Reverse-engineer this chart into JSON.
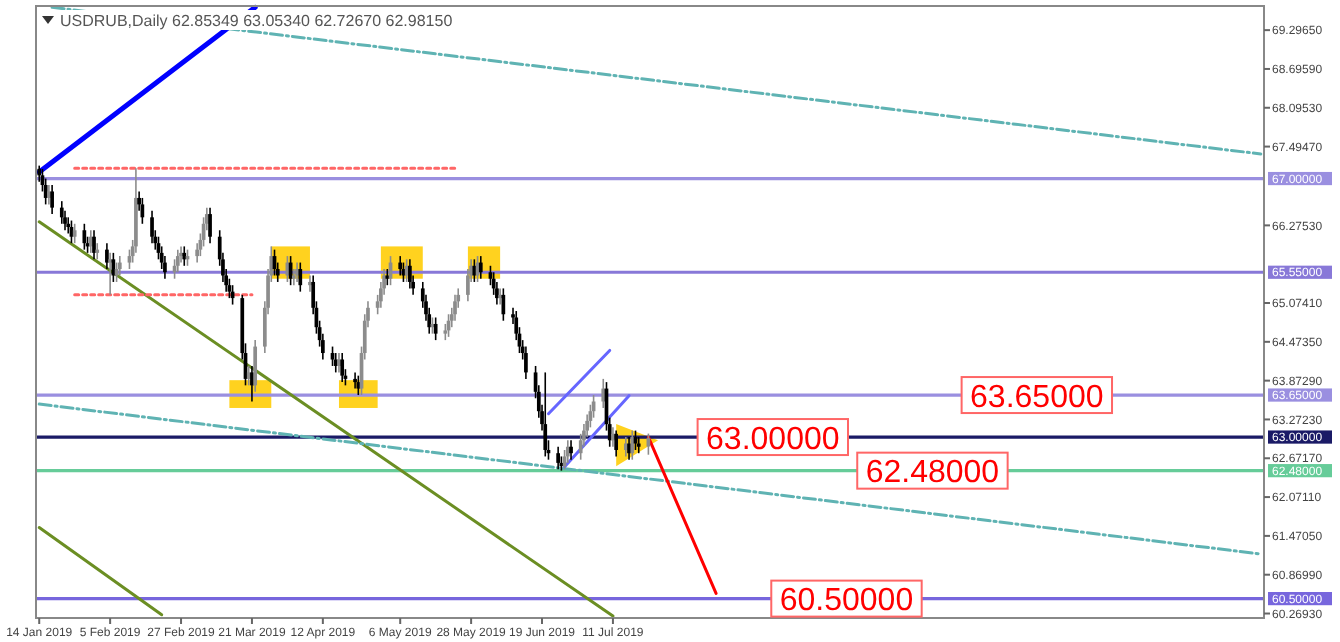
{
  "chart_data": {
    "type": "candlestick",
    "title": "USDRUB,Daily 62.85349 63.05340 62.72670 62.98150",
    "x": [
      "2019-01-14",
      "2019-01-15",
      "2019-01-16",
      "2019-01-17",
      "2019-01-18",
      "2019-01-21",
      "2019-01-22",
      "2019-01-23",
      "2019-01-24",
      "2019-01-25",
      "2019-01-28",
      "2019-01-29",
      "2019-01-30",
      "2019-01-31",
      "2019-02-01",
      "2019-02-04",
      "2019-02-05",
      "2019-02-06",
      "2019-02-07",
      "2019-02-08",
      "2019-02-11",
      "2019-02-12",
      "2019-02-13",
      "2019-02-14",
      "2019-02-15",
      "2019-02-18",
      "2019-02-19",
      "2019-02-20",
      "2019-02-21",
      "2019-02-22",
      "2019-02-25",
      "2019-02-26",
      "2019-02-27",
      "2019-02-28",
      "2019-03-01",
      "2019-03-04",
      "2019-03-05",
      "2019-03-06",
      "2019-03-07",
      "2019-03-08",
      "2019-03-11",
      "2019-03-12",
      "2019-03-13",
      "2019-03-14",
      "2019-03-15",
      "2019-03-18",
      "2019-03-19",
      "2019-03-20",
      "2019-03-21",
      "2019-03-22",
      "2019-03-25",
      "2019-03-26",
      "2019-03-27",
      "2019-03-28",
      "2019-03-29",
      "2019-04-01",
      "2019-04-02",
      "2019-04-03",
      "2019-04-04",
      "2019-04-05",
      "2019-04-08",
      "2019-04-09",
      "2019-04-10",
      "2019-04-11",
      "2019-04-12",
      "2019-04-15",
      "2019-04-16",
      "2019-04-17",
      "2019-04-18",
      "2019-04-19",
      "2019-04-22",
      "2019-04-23",
      "2019-04-24",
      "2019-04-25",
      "2019-04-26",
      "2019-04-29",
      "2019-04-30",
      "2019-05-01",
      "2019-05-02",
      "2019-05-03",
      "2019-05-06",
      "2019-05-07",
      "2019-05-08",
      "2019-05-09",
      "2019-05-10",
      "2019-05-13",
      "2019-05-14",
      "2019-05-15",
      "2019-05-16",
      "2019-05-17",
      "2019-05-20",
      "2019-05-21",
      "2019-05-22",
      "2019-05-23",
      "2019-05-24",
      "2019-05-27",
      "2019-05-28",
      "2019-05-29",
      "2019-05-30",
      "2019-05-31",
      "2019-06-03",
      "2019-06-04",
      "2019-06-05",
      "2019-06-06",
      "2019-06-07",
      "2019-06-10",
      "2019-06-11",
      "2019-06-12",
      "2019-06-13",
      "2019-06-14",
      "2019-06-17",
      "2019-06-18",
      "2019-06-19",
      "2019-06-20",
      "2019-06-21",
      "2019-06-24",
      "2019-06-25",
      "2019-06-26",
      "2019-06-27",
      "2019-06-28",
      "2019-07-01",
      "2019-07-02",
      "2019-07-03",
      "2019-07-04",
      "2019-07-05",
      "2019-07-08",
      "2019-07-09",
      "2019-07-10",
      "2019-07-11",
      "2019-07-12",
      "2019-07-15",
      "2019-07-16",
      "2019-07-17",
      "2019-07-18",
      "2019-07-19",
      "2019-07-22"
    ],
    "ohlc": [
      [
        67.15,
        67.2,
        66.95,
        67.05
      ],
      [
        67.05,
        67.15,
        66.8,
        66.9
      ],
      [
        66.9,
        67.0,
        66.6,
        66.7
      ],
      [
        66.7,
        66.9,
        66.6,
        66.8
      ],
      [
        66.8,
        66.9,
        66.45,
        66.55
      ],
      [
        66.55,
        66.65,
        66.3,
        66.4
      ],
      [
        66.4,
        66.5,
        66.2,
        66.3
      ],
      [
        66.3,
        66.4,
        66.15,
        66.25
      ],
      [
        66.25,
        66.35,
        66.0,
        66.1
      ],
      [
        66.1,
        66.3,
        66.0,
        66.2
      ],
      [
        66.2,
        66.3,
        65.9,
        66.0
      ],
      [
        66.0,
        66.1,
        65.85,
        65.95
      ],
      [
        65.95,
        66.2,
        65.85,
        66.1
      ],
      [
        66.1,
        66.2,
        65.75,
        65.85
      ],
      [
        65.85,
        66.0,
        65.75,
        65.9
      ],
      [
        65.9,
        66.0,
        65.6,
        65.7
      ],
      [
        65.7,
        65.85,
        65.2,
        65.75
      ],
      [
        65.75,
        65.85,
        65.4,
        65.5
      ],
      [
        65.5,
        65.7,
        65.4,
        65.6
      ],
      [
        65.6,
        65.8,
        65.5,
        65.7
      ],
      [
        65.7,
        65.9,
        65.6,
        65.8
      ],
      [
        65.8,
        66.05,
        65.7,
        65.95
      ],
      [
        65.95,
        67.16,
        65.85,
        66.7
      ],
      [
        66.7,
        66.8,
        66.5,
        66.6
      ],
      [
        66.6,
        66.7,
        66.3,
        66.4
      ],
      [
        66.4,
        66.5,
        66.0,
        66.1
      ],
      [
        66.1,
        66.2,
        65.9,
        66.0
      ],
      [
        66.0,
        66.1,
        65.75,
        65.85
      ],
      [
        65.85,
        65.95,
        65.6,
        65.7
      ],
      [
        65.7,
        65.8,
        65.45,
        65.55
      ],
      [
        65.55,
        65.75,
        65.45,
        65.65
      ],
      [
        65.65,
        65.9,
        65.55,
        65.8
      ],
      [
        65.8,
        65.95,
        65.7,
        65.85
      ],
      [
        65.85,
        65.95,
        65.65,
        65.75
      ],
      [
        65.75,
        65.9,
        65.65,
        65.8
      ],
      [
        65.8,
        66.0,
        65.7,
        65.9
      ],
      [
        65.9,
        66.15,
        65.8,
        66.05
      ],
      [
        66.05,
        66.4,
        65.95,
        66.3
      ],
      [
        66.3,
        66.55,
        66.2,
        66.45
      ],
      [
        66.45,
        66.55,
        66.0,
        66.1
      ],
      [
        66.1,
        66.2,
        65.65,
        65.75
      ],
      [
        65.75,
        65.85,
        65.4,
        65.5
      ],
      [
        65.5,
        65.6,
        65.25,
        65.35
      ],
      [
        65.35,
        65.45,
        65.15,
        65.25
      ],
      [
        65.25,
        65.35,
        65.05,
        65.15
      ],
      [
        65.15,
        65.2,
        64.2,
        64.3
      ],
      [
        64.3,
        64.45,
        63.8,
        63.9
      ],
      [
        63.9,
        64.1,
        63.8,
        64.0
      ],
      [
        64.0,
        64.1,
        63.55,
        63.8
      ],
      [
        63.8,
        64.5,
        63.7,
        64.4
      ],
      [
        64.4,
        65.1,
        64.3,
        65.0
      ],
      [
        65.0,
        65.6,
        64.9,
        65.5
      ],
      [
        65.5,
        65.95,
        65.4,
        65.8
      ],
      [
        65.8,
        65.9,
        65.5,
        65.6
      ],
      [
        65.6,
        65.7,
        65.4,
        65.5
      ],
      [
        65.5,
        65.8,
        65.4,
        65.7
      ],
      [
        65.7,
        65.8,
        65.35,
        65.45
      ],
      [
        65.45,
        65.6,
        65.35,
        65.5
      ],
      [
        65.5,
        65.7,
        65.4,
        65.6
      ],
      [
        65.6,
        65.7,
        65.25,
        65.35
      ],
      [
        65.35,
        65.5,
        65.25,
        65.4
      ],
      [
        65.4,
        65.5,
        64.9,
        65.0
      ],
      [
        65.0,
        65.1,
        64.6,
        64.7
      ],
      [
        64.7,
        64.8,
        64.4,
        64.5
      ],
      [
        64.5,
        64.6,
        64.2,
        64.3
      ],
      [
        64.3,
        64.4,
        64.1,
        64.2
      ],
      [
        64.2,
        64.3,
        64.0,
        64.1
      ],
      [
        64.1,
        64.3,
        64.0,
        64.2
      ],
      [
        64.2,
        64.3,
        63.85,
        63.95
      ],
      [
        63.95,
        64.05,
        63.8,
        63.9
      ],
      [
        63.9,
        64.0,
        63.75,
        63.85
      ],
      [
        63.85,
        63.95,
        63.65,
        63.75
      ],
      [
        63.75,
        64.4,
        63.65,
        64.3
      ],
      [
        64.3,
        64.9,
        64.2,
        64.8
      ],
      [
        64.8,
        65.1,
        64.7,
        65.0
      ],
      [
        65.0,
        65.2,
        64.9,
        65.1
      ],
      [
        65.1,
        65.4,
        65.0,
        65.3
      ],
      [
        65.3,
        65.6,
        65.2,
        65.5
      ],
      [
        65.5,
        65.6,
        65.35,
        65.45
      ],
      [
        65.45,
        65.8,
        65.35,
        65.7
      ],
      [
        65.7,
        65.8,
        65.5,
        65.6
      ],
      [
        65.6,
        65.7,
        65.4,
        65.5
      ],
      [
        65.5,
        65.75,
        65.4,
        65.65
      ],
      [
        65.65,
        65.75,
        65.3,
        65.4
      ],
      [
        65.4,
        65.5,
        65.2,
        65.3
      ],
      [
        65.3,
        65.4,
        65.0,
        65.1
      ],
      [
        65.1,
        65.2,
        64.8,
        64.9
      ],
      [
        64.9,
        65.0,
        64.6,
        64.7
      ],
      [
        64.7,
        64.85,
        64.6,
        64.75
      ],
      [
        64.75,
        64.85,
        64.5,
        64.6
      ],
      [
        64.6,
        64.75,
        64.5,
        64.65
      ],
      [
        64.65,
        64.9,
        64.55,
        64.8
      ],
      [
        64.8,
        65.0,
        64.7,
        64.9
      ],
      [
        64.9,
        65.2,
        64.8,
        65.1
      ],
      [
        65.1,
        65.3,
        65.0,
        65.2
      ],
      [
        65.2,
        65.6,
        65.1,
        65.5
      ],
      [
        65.5,
        65.75,
        65.4,
        65.65
      ],
      [
        65.65,
        65.75,
        65.4,
        65.5
      ],
      [
        65.5,
        65.8,
        65.4,
        65.7
      ],
      [
        65.7,
        65.8,
        65.45,
        65.55
      ],
      [
        65.55,
        65.65,
        65.35,
        65.45
      ],
      [
        65.45,
        65.55,
        65.2,
        65.3
      ],
      [
        65.3,
        65.4,
        65.05,
        65.15
      ],
      [
        65.15,
        65.3,
        65.05,
        65.2
      ],
      [
        65.2,
        65.3,
        64.8,
        64.9
      ],
      [
        64.9,
        65.0,
        64.75,
        64.85
      ],
      [
        64.85,
        64.95,
        64.5,
        64.6
      ],
      [
        64.6,
        64.7,
        64.3,
        64.4
      ],
      [
        64.4,
        64.5,
        64.2,
        64.3
      ],
      [
        64.3,
        64.4,
        63.9,
        64.0
      ],
      [
        64.0,
        64.1,
        63.6,
        63.7
      ],
      [
        63.7,
        63.8,
        63.3,
        63.4
      ],
      [
        63.4,
        63.5,
        63.1,
        63.2
      ],
      [
        63.2,
        64.0,
        62.7,
        62.8
      ],
      [
        62.8,
        62.95,
        62.65,
        62.75
      ],
      [
        62.75,
        62.85,
        62.5,
        62.6
      ],
      [
        62.6,
        62.7,
        62.48,
        62.55
      ],
      [
        62.55,
        62.8,
        62.5,
        62.7
      ],
      [
        62.7,
        62.95,
        62.6,
        62.85
      ],
      [
        62.85,
        62.95,
        62.65,
        62.75
      ],
      [
        62.75,
        63.05,
        62.65,
        62.95
      ],
      [
        62.95,
        63.2,
        62.85,
        63.1
      ],
      [
        63.1,
        63.35,
        63.0,
        63.25
      ],
      [
        63.25,
        63.5,
        63.15,
        63.4
      ],
      [
        63.4,
        63.65,
        63.3,
        63.55
      ],
      [
        63.55,
        63.9,
        63.45,
        63.75
      ],
      [
        63.75,
        63.85,
        63.1,
        63.2
      ],
      [
        63.2,
        63.3,
        62.85,
        62.95
      ],
      [
        62.95,
        63.15,
        62.85,
        63.05
      ],
      [
        63.05,
        63.1,
        62.7,
        62.8
      ],
      [
        62.8,
        63.0,
        62.7,
        62.9
      ],
      [
        62.9,
        63.0,
        62.65,
        62.75
      ],
      [
        62.75,
        63.1,
        62.65,
        63.0
      ],
      [
        63.0,
        63.1,
        62.8,
        62.9
      ],
      [
        62.9,
        63.0,
        62.75,
        62.85
      ],
      [
        62.85349,
        63.0534,
        62.7267,
        62.9815
      ]
    ],
    "series": [
      {
        "type": "line",
        "color": "#0000ff",
        "x": [
          "2019-01-14",
          "2019-03-22"
        ],
        "values": [
          67.1,
          69.65
        ],
        "line_style": "solid"
      },
      {
        "type": "line",
        "color": "#6b8e23",
        "x": [
          "2019-01-14",
          "2019-07-11"
        ],
        "values": [
          66.33,
          60.23
        ],
        "line_style": "solid"
      },
      {
        "type": "line",
        "color": "#6b8e23",
        "x": [
          "2019-01-14",
          "2019-02-21"
        ],
        "values": [
          61.6,
          60.25
        ],
        "line_style": "solid"
      },
      {
        "type": "line",
        "color": "#5fb3b3",
        "x": [
          "2019-01-18",
          "2020-01-28"
        ],
        "values": [
          69.65,
          67.38
        ],
        "line_style": "dashed"
      },
      {
        "type": "line",
        "color": "#5fb3b3",
        "x": [
          "2019-01-14",
          "2020-01-28"
        ],
        "values": [
          63.51,
          61.19
        ],
        "line_style": "dashed"
      },
      {
        "type": "line",
        "color": "#6666ff",
        "x": [
          "2019-06-26",
          "2019-07-16"
        ],
        "values": [
          62.54,
          63.64
        ],
        "line_style": "solid"
      },
      {
        "type": "line",
        "color": "#6666ff",
        "x": [
          "2019-06-21",
          "2019-07-10"
        ],
        "values": [
          63.36,
          64.34
        ],
        "line_style": "solid"
      },
      {
        "type": "line",
        "color": "#ff0000",
        "x": [
          "2019-07-22",
          "2019-08-12"
        ],
        "values": [
          63.0,
          60.58
        ],
        "line_style": "solid"
      },
      {
        "type": "line",
        "color": "#ff6666",
        "x": [
          "2019-01-25",
          "2019-05-23"
        ],
        "values": [
          67.16,
          67.16
        ],
        "line_style": "dotted"
      },
      {
        "type": "line",
        "color": "#ff6666",
        "x": [
          "2019-01-25",
          "2019-03-21"
        ],
        "values": [
          65.2,
          65.2
        ],
        "line_style": "dotted"
      }
    ],
    "xlim": [
      "2019-01-13",
      "2020-01-29"
    ],
    "xticks": [
      {
        "value": "2019-01-14",
        "label": "14 Jan 2019"
      },
      {
        "value": "2019-02-05",
        "label": "5 Feb 2019"
      },
      {
        "value": "2019-02-27",
        "label": "27 Feb 2019"
      },
      {
        "value": "2019-03-21",
        "label": "21 Mar 2019"
      },
      {
        "value": "2019-04-12",
        "label": "12 Apr 2019"
      },
      {
        "value": "2019-05-06",
        "label": "6 May 2019"
      },
      {
        "value": "2019-05-28",
        "label": "28 May 2019"
      },
      {
        "value": "2019-06-19",
        "label": "19 Jun 2019"
      },
      {
        "value": "2019-07-11",
        "label": "11 Jul 2019"
      }
    ],
    "ylim": [
      60.2,
      69.67
    ],
    "yticks": [
      {
        "value": 69.2965,
        "label": "69.29650"
      },
      {
        "value": 68.6959,
        "label": "68.69590"
      },
      {
        "value": 68.0953,
        "label": "68.09530"
      },
      {
        "value": 67.4947,
        "label": "67.49470"
      },
      {
        "value": 66.2753,
        "label": "66.27530"
      },
      {
        "value": 65.0741,
        "label": "65.07410"
      },
      {
        "value": 64.4735,
        "label": "64.47350"
      },
      {
        "value": 63.8729,
        "label": "63.87290"
      },
      {
        "value": 63.2723,
        "label": "63.27230"
      },
      {
        "value": 62.6717,
        "label": "62.67170"
      },
      {
        "value": 62.0711,
        "label": "62.07110"
      },
      {
        "value": 61.4705,
        "label": "61.47050"
      },
      {
        "value": 60.8699,
        "label": "60.86990"
      },
      {
        "value": 60.2693,
        "label": "60.26930"
      }
    ],
    "ref_lines": [
      {
        "axis": "y",
        "value": 67.0,
        "label": "67.00000",
        "color": "#9a8fe0"
      },
      {
        "axis": "y",
        "value": 65.55,
        "label": "65.55000",
        "color": "#8878d8"
      },
      {
        "axis": "y",
        "value": 63.65,
        "label": "63.65000",
        "color": "#9a8fe0"
      },
      {
        "axis": "y",
        "value": 63.0,
        "label": "63.00000",
        "color": "#1a1a66"
      },
      {
        "axis": "y",
        "value": 62.48,
        "label": "62.48000",
        "color": "#66cc99"
      },
      {
        "axis": "y",
        "value": 60.5,
        "label": "60.50000",
        "color": "#7766dd"
      }
    ],
    "annotations": [
      {
        "text": "63.65000",
        "y": 63.65
      },
      {
        "text": "63.00000",
        "y": 63.0
      },
      {
        "text": "62.48000",
        "y": 62.48
      },
      {
        "text": "60.50000",
        "y": 60.5
      }
    ]
  }
}
